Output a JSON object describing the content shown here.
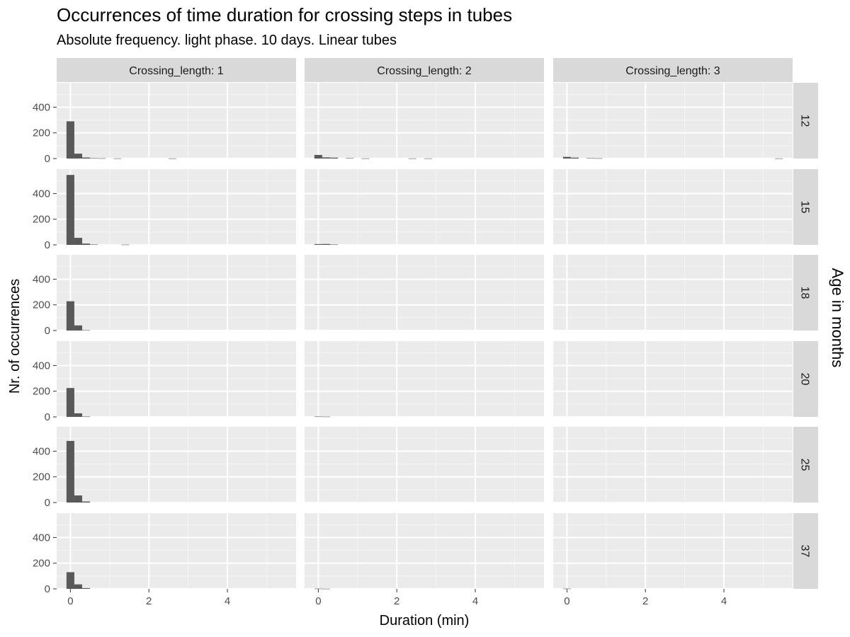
{
  "chart_data": {
    "type": "bar",
    "title": "Occurrences of time duration for crossing steps in tubes",
    "subtitle": "Absolute frequency. light phase. 10 days. Linear tubes",
    "xlabel": "Duration (min)",
    "ylabel": "Nr. of occurrences",
    "facet_row_label": "Age in months",
    "column_strip_prefix": "Crossing_length: ",
    "columns": [
      "1",
      "2",
      "3"
    ],
    "rows": [
      "12",
      "15",
      "18",
      "20",
      "25",
      "37"
    ],
    "xlim": [
      -0.35,
      5.75
    ],
    "ylim": [
      0,
      590
    ],
    "x_ticks": [
      0,
      2,
      4
    ],
    "y_ticks": [
      0,
      200,
      400
    ],
    "bin_width": 0.2,
    "bar_color": "#595959",
    "grid": true,
    "panels": [
      {
        "row": "12",
        "col": "1",
        "bins": [
          [
            0,
            290
          ],
          [
            0.2,
            38
          ],
          [
            0.4,
            8
          ],
          [
            0.6,
            3
          ],
          [
            0.8,
            2
          ],
          [
            1.2,
            1
          ],
          [
            2.6,
            1
          ]
        ]
      },
      {
        "row": "12",
        "col": "2",
        "bins": [
          [
            0,
            28
          ],
          [
            0.2,
            9
          ],
          [
            0.4,
            7
          ],
          [
            0.8,
            3
          ],
          [
            1.2,
            1
          ],
          [
            2.4,
            1
          ],
          [
            2.8,
            1
          ]
        ]
      },
      {
        "row": "12",
        "col": "3",
        "bins": [
          [
            0,
            13
          ],
          [
            0.2,
            7
          ],
          [
            0.6,
            3
          ],
          [
            0.8,
            2
          ],
          [
            5.4,
            1
          ]
        ]
      },
      {
        "row": "15",
        "col": "1",
        "bins": [
          [
            0,
            545
          ],
          [
            0.2,
            55
          ],
          [
            0.4,
            10
          ],
          [
            0.6,
            3
          ],
          [
            1.4,
            2
          ]
        ]
      },
      {
        "row": "15",
        "col": "2",
        "bins": [
          [
            0,
            6
          ],
          [
            0.2,
            7
          ],
          [
            0.4,
            3
          ]
        ]
      },
      {
        "row": "15",
        "col": "3",
        "bins": []
      },
      {
        "row": "18",
        "col": "1",
        "bins": [
          [
            0,
            228
          ],
          [
            0.2,
            40
          ],
          [
            0.4,
            3
          ]
        ]
      },
      {
        "row": "18",
        "col": "2",
        "bins": []
      },
      {
        "row": "18",
        "col": "3",
        "bins": []
      },
      {
        "row": "20",
        "col": "1",
        "bins": [
          [
            0,
            225
          ],
          [
            0.2,
            28
          ],
          [
            0.4,
            3
          ]
        ]
      },
      {
        "row": "20",
        "col": "2",
        "bins": [
          [
            0,
            3
          ],
          [
            0.2,
            2
          ]
        ]
      },
      {
        "row": "20",
        "col": "3",
        "bins": []
      },
      {
        "row": "25",
        "col": "1",
        "bins": [
          [
            0,
            480
          ],
          [
            0.2,
            55
          ],
          [
            0.4,
            8
          ]
        ]
      },
      {
        "row": "25",
        "col": "2",
        "bins": []
      },
      {
        "row": "25",
        "col": "3",
        "bins": []
      },
      {
        "row": "37",
        "col": "1",
        "bins": [
          [
            0,
            130
          ],
          [
            0.2,
            35
          ],
          [
            0.4,
            6
          ]
        ]
      },
      {
        "row": "37",
        "col": "2",
        "bins": [
          [
            0,
            2
          ],
          [
            0.2,
            1
          ]
        ]
      },
      {
        "row": "37",
        "col": "3",
        "bins": [
          [
            0,
            2
          ]
        ]
      }
    ]
  }
}
